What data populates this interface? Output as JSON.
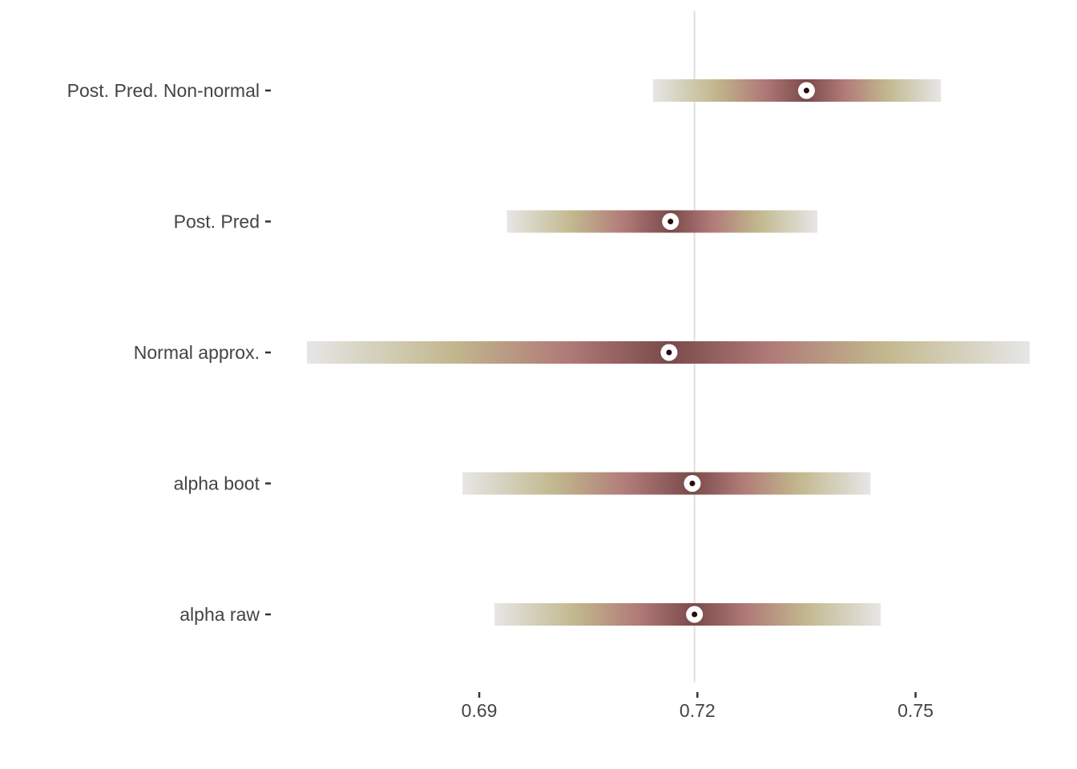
{
  "chart_data": {
    "type": "interval",
    "title": "",
    "xlabel": "",
    "ylabel": "",
    "xlim": [
      0.6663,
      0.7657
    ],
    "grid": false,
    "reference_line": 0.7196,
    "x_ticks": [
      {
        "value": 0.69,
        "label": "0.69"
      },
      {
        "value": 0.72,
        "label": "0.72"
      },
      {
        "value": 0.75,
        "label": "0.75"
      }
    ],
    "categories": [
      "Post. Pred. Non-normal",
      "Post. Pred",
      "Normal approx.",
      "alpha boot",
      "alpha raw"
    ],
    "series": [
      {
        "category": "Post. Pred. Non-normal",
        "low": 0.7139,
        "estimate": 0.735,
        "high": 0.7535
      },
      {
        "category": "Post. Pred",
        "low": 0.6938,
        "estimate": 0.7163,
        "high": 0.7365
      },
      {
        "category": "Normal approx.",
        "low": 0.6663,
        "estimate": 0.7161,
        "high": 0.7657
      },
      {
        "category": "alpha boot",
        "low": 0.6877,
        "estimate": 0.7193,
        "high": 0.7438
      },
      {
        "category": "alpha raw",
        "low": 0.6921,
        "estimate": 0.7196,
        "high": 0.7452
      }
    ],
    "gradient_colors": [
      "#e6e6e6",
      "#c2b88e",
      "#b07a78",
      "#7a4a4a"
    ],
    "point_color": "#ffffff",
    "point_center_color": "#2a0a0a",
    "reference_line_color": "#e0e0e0"
  }
}
